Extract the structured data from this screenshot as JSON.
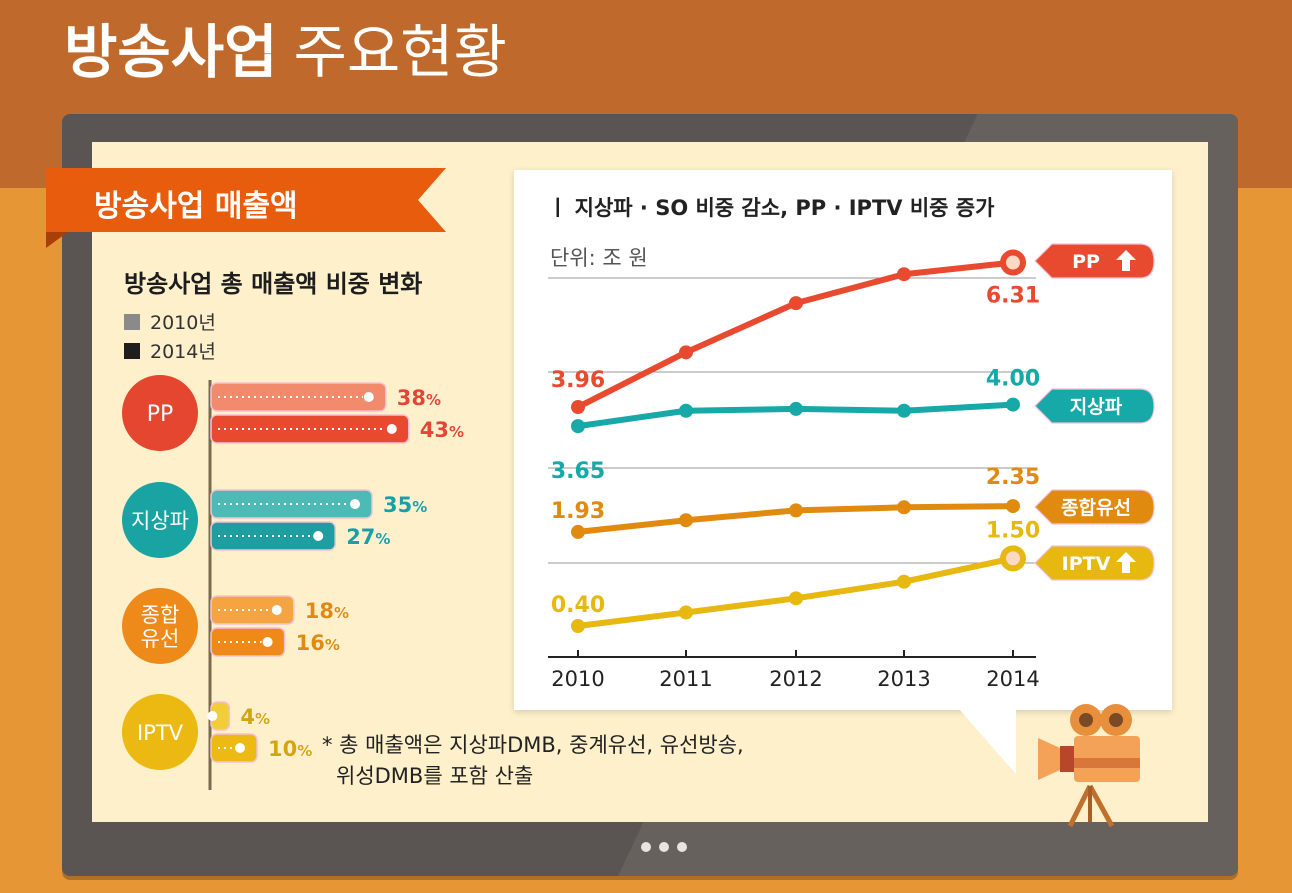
{
  "page": {
    "title_bold": "방송사업",
    "title_light": "주요현황"
  },
  "ribbon": {
    "label": "방송사업 매출액"
  },
  "share_chart": {
    "title": "방송사업 총 매출액 비중 변화",
    "legend": [
      {
        "label": "2010년",
        "color": "#8a8a8a"
      },
      {
        "label": "2014년",
        "color": "#1e1e1e"
      }
    ],
    "chart_data": {
      "type": "bar",
      "orientation": "horizontal",
      "title": "방송사업 총 매출액 비중 변화",
      "categories": [
        "PP",
        "지상파",
        "종합\n유선",
        "IPTV"
      ],
      "category_lines": [
        [
          "PP"
        ],
        [
          "지상파"
        ],
        [
          "종합",
          "유선"
        ],
        [
          "IPTV"
        ]
      ],
      "series": [
        {
          "name": "2010년",
          "values": [
            38,
            35,
            18,
            4
          ]
        },
        {
          "name": "2014년",
          "values": [
            43,
            27,
            16,
            10
          ]
        }
      ],
      "labels": [
        [
          "38%",
          "43%"
        ],
        [
          "35%",
          "27%"
        ],
        [
          "18%",
          "16%"
        ],
        [
          "4%",
          "10%"
        ]
      ],
      "unit": "%",
      "colors": [
        {
          "c2010": "#f28b6b",
          "c2014": "#e84a2f",
          "circle": "#e4462f",
          "text": "#e4462f"
        },
        {
          "c2010": "#4dbab5",
          "c2014": "#1e9ea0",
          "circle": "#1aa3a3",
          "text": "#1e9ea0"
        },
        {
          "c2010": "#f5a442",
          "c2014": "#ef8a18",
          "circle": "#ee8a19",
          "text": "#e08a10"
        },
        {
          "c2010": "#f2cd3a",
          "c2014": "#ecba12",
          "circle": "#ecb812",
          "text": "#d6a40c"
        }
      ]
    },
    "note_lines": [
      "* 총 매출액은 지상파DMB, 중계유선, 유선방송,",
      "위성DMB를 포함 산출"
    ]
  },
  "trend_chart": {
    "title": "ㅣ 지상파 · SO 비중 감소, PP · IPTV 비중 증가",
    "unit": "단위: 조 원",
    "chart_data": {
      "type": "line",
      "x": [
        "2010",
        "2011",
        "2012",
        "2013",
        "2014"
      ],
      "series": [
        {
          "name": "PP",
          "values": [
            3.96,
            4.85,
            5.65,
            6.12,
            6.31
          ],
          "start_label": "3.96",
          "end_label": "6.31",
          "color": "#e84a2f",
          "arrow": "up"
        },
        {
          "name": "지상파",
          "values": [
            3.65,
            3.9,
            3.93,
            3.9,
            4.0
          ],
          "start_label": "3.65",
          "end_label": "4.00",
          "color": "#17a8a8",
          "arrow": ""
        },
        {
          "name": "종합유선",
          "values": [
            1.93,
            2.12,
            2.28,
            2.33,
            2.35
          ],
          "start_label": "1.93",
          "end_label": "2.35",
          "color": "#e08a10",
          "arrow": ""
        },
        {
          "name": "IPTV",
          "values": [
            0.4,
            0.62,
            0.85,
            1.12,
            1.5
          ],
          "start_label": "0.40",
          "end_label": "1.50",
          "color": "#e6b810",
          "arrow": "up"
        }
      ],
      "grid": true
    }
  },
  "colors": {
    "title_band": "#bf6a2c",
    "ribbon": "#e85c0d",
    "monitor": "#5a5552",
    "screen": "#fdf0cb"
  }
}
